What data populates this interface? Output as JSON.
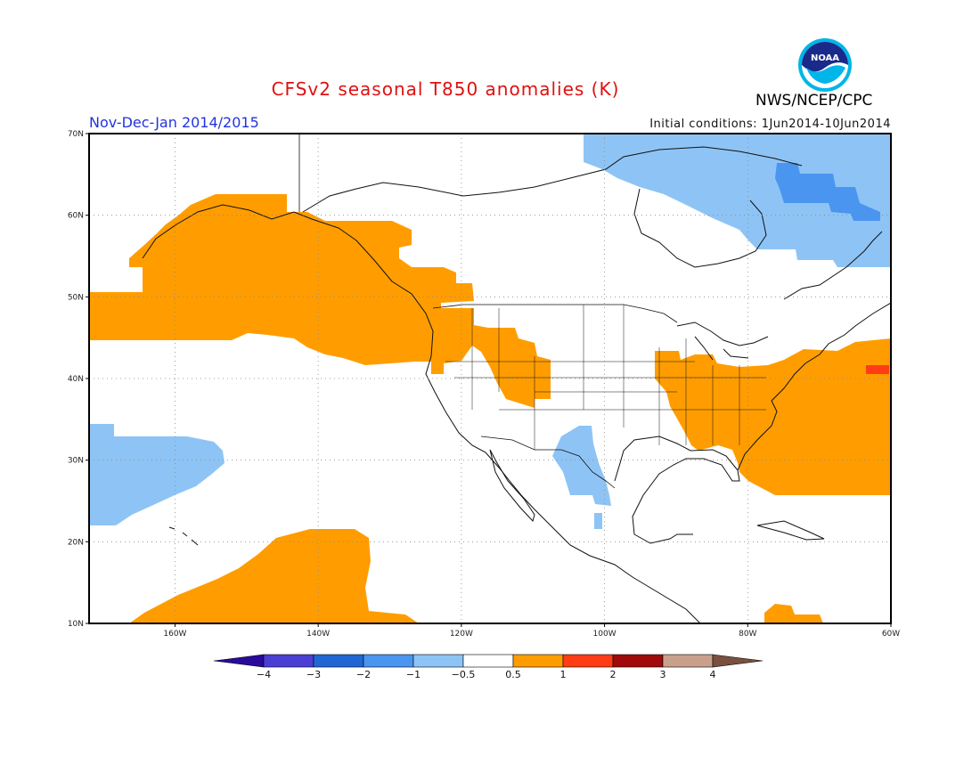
{
  "title": "CFSv2 seasonal T850 anomalies (K)",
  "agency": "NWS/NCEP/CPC",
  "logo_text": "NOAA",
  "season": "Nov-Dec-Jan 2014/2015",
  "initial_conditions": "Initial conditions: 1Jun2014-10Jun2014",
  "map": {
    "lon_range": [
      -172,
      -60
    ],
    "lat_range": [
      10,
      70
    ],
    "lon_ticks": [
      "160W",
      "140W",
      "120W",
      "100W",
      "80W",
      "60W"
    ],
    "lat_ticks": [
      "70N",
      "60N",
      "50N",
      "40N",
      "30N",
      "20N",
      "10N"
    ],
    "grid": true
  },
  "colorbar": {
    "labels": [
      "-4",
      "-3",
      "-2",
      "-1",
      "-0.5",
      "0.5",
      "1",
      "2",
      "3",
      "4"
    ],
    "colors": [
      "#2a0a9a",
      "#4a3fd4",
      "#2166d4",
      "#4a95ef",
      "#8ec4f5",
      "#ffffff",
      "#ff9d00",
      "#ff3c14",
      "#a00a0a",
      "#c8a08c",
      "#7a5040"
    ]
  },
  "colors": {
    "warm": "#ff9d00",
    "warm_strong": "#ff3c14",
    "cool": "#8ec4f5",
    "cool_strong": "#4a95ef"
  }
}
